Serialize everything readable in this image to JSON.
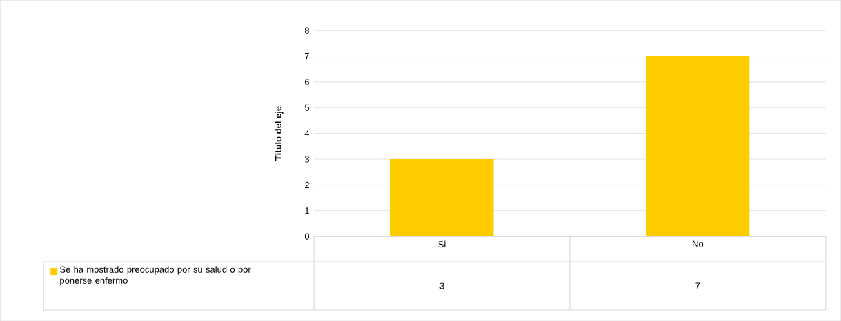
{
  "chart_data": {
    "type": "bar",
    "ylabel": "Título del eje",
    "categories": [
      "Si",
      "No"
    ],
    "series": [
      {
        "name": "Se ha mostrado preocupado por su salud o por ponerse enfermo",
        "color": "#ffcc00",
        "values": [
          3,
          7
        ]
      }
    ],
    "ylim": [
      0,
      8
    ],
    "yticks": [
      0,
      1,
      2,
      3,
      4,
      5,
      6,
      7,
      8
    ],
    "grid": "y",
    "legend": "bottom",
    "data_labels": true
  }
}
